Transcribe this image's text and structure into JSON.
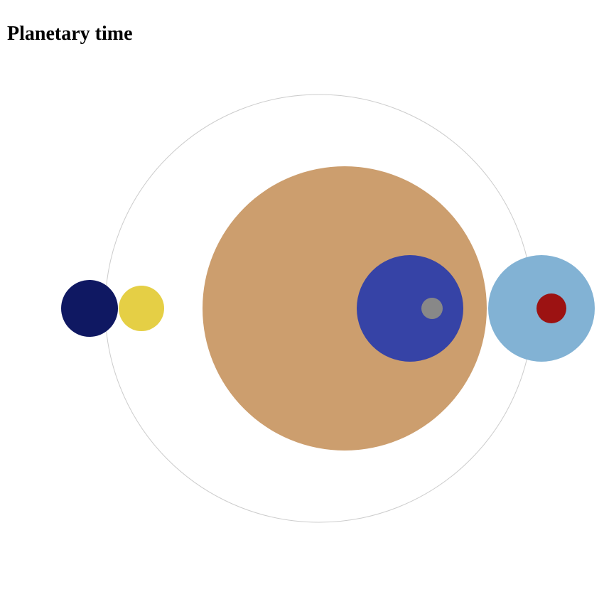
{
  "page": {
    "title": "Planetary time"
  },
  "diagram": {
    "orbit_ring": {
      "color": "#cccccc"
    },
    "bodies": [
      {
        "name": "dark-navy-planet",
        "color": "#0f1862"
      },
      {
        "name": "yellow-planet",
        "color": "#e5cf45"
      },
      {
        "name": "tan-planet",
        "color": "#cc9e6e"
      },
      {
        "name": "blue-planet",
        "color": "#3643a6"
      },
      {
        "name": "gray-moon",
        "color": "#888888"
      },
      {
        "name": "light-blue-planet",
        "color": "#82b2d4"
      },
      {
        "name": "red-moon",
        "color": "#9c1212"
      }
    ]
  }
}
